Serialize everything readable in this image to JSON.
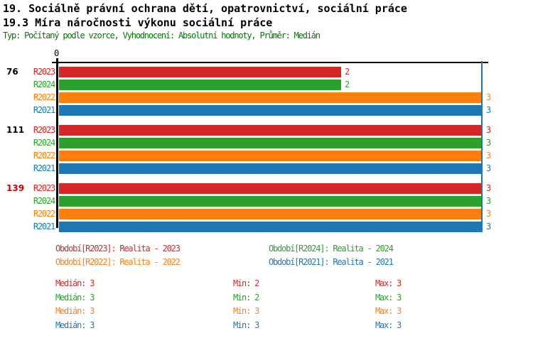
{
  "header": {
    "title": "19. Sociálně právní ochrana dětí, opatrovnictví, sociální práce",
    "subtitle": "19.3 Míra náročnosti výkonu sociální práce",
    "meta": "Typ: Počítaný podle vzorce, Vyhodnocení: Absolutní hodnoty, Průměr: Medián"
  },
  "colors": {
    "R2023": "#d62728",
    "R2024": "#2ca02c",
    "R2022": "#ff7f0e",
    "R2021": "#1f77b4",
    "axis": "#000000",
    "reference_line": "#1f77b4",
    "meta_text": "#007700",
    "group_label_normal": "#000000",
    "group_label_highlight": "#cc0000"
  },
  "chart_data": {
    "type": "bar",
    "orientation": "horizontal",
    "x_axis": {
      "origin_tick_label": "0",
      "xlim": [
        0,
        3.35
      ],
      "grid": false
    },
    "reference_line": {
      "value": 3,
      "color": "#1f77b4"
    },
    "series_order": [
      "R2023",
      "R2024",
      "R2022",
      "R2021"
    ],
    "groups": [
      {
        "label": "76",
        "highlighted": false,
        "values": {
          "R2023": 2,
          "R2024": 2,
          "R2022": 3,
          "R2021": 3
        }
      },
      {
        "label": "111",
        "highlighted": false,
        "values": {
          "R2023": 3,
          "R2024": 3,
          "R2022": 3,
          "R2021": 3
        }
      },
      {
        "label": "139",
        "highlighted": true,
        "values": {
          "R2023": 3,
          "R2024": 3,
          "R2022": 3,
          "R2021": 3
        }
      }
    ]
  },
  "legend": {
    "items": [
      {
        "series": "R2023",
        "label": "Období[R2023]: Realita - 2023",
        "color": "#d62728"
      },
      {
        "series": "R2024",
        "label": "Období[R2024]: Realita - 2024",
        "color": "#2ca02c"
      },
      {
        "series": "R2022",
        "label": "Období[R2022]: Realita - 2022",
        "color": "#ff7f0e"
      },
      {
        "series": "R2021",
        "label": "Období[R2021]: Realita - 2021",
        "color": "#1f77b4"
      }
    ]
  },
  "stats": {
    "rows": [
      {
        "series": "R2023",
        "color": "#d62728",
        "median_label": "Medián",
        "median": 3,
        "min_label": "Min",
        "min": 2,
        "max_label": "Max",
        "max": 3
      },
      {
        "series": "R2024",
        "color": "#2ca02c",
        "median_label": "Medián",
        "median": 3,
        "min_label": "Min",
        "min": 2,
        "max_label": "Max",
        "max": 3
      },
      {
        "series": "R2022",
        "color": "#ff7f0e",
        "median_label": "Medián",
        "median": 3,
        "min_label": "Min",
        "min": 3,
        "max_label": "Max",
        "max": 3
      },
      {
        "series": "R2021",
        "color": "#1f77b4",
        "median_label": "Medián",
        "median": 3,
        "min_label": "Min",
        "min": 3,
        "max_label": "Max",
        "max": 3
      }
    ]
  }
}
